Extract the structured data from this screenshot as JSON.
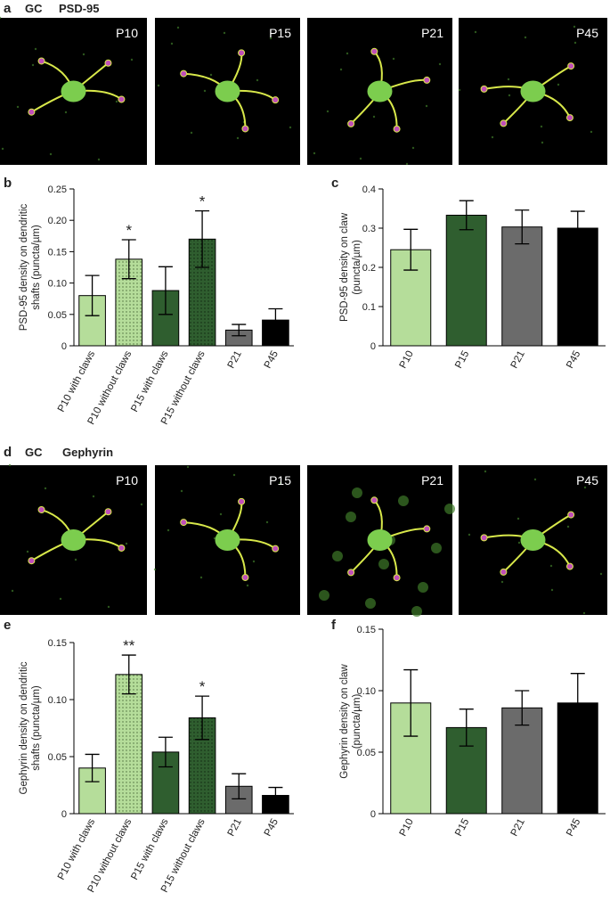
{
  "panel_labels": [
    "a",
    "b",
    "c",
    "d",
    "e",
    "f"
  ],
  "image_rows": [
    {
      "legend": [
        "GC",
        "PSD-95"
      ],
      "legend_colors": [
        "#7ccd4e",
        "#c04fb8"
      ],
      "labels": [
        "P10",
        "P15",
        "P21",
        "P45"
      ]
    },
    {
      "legend": [
        "GC",
        "Gephyrin"
      ],
      "legend_colors": [
        "#7ccd4e",
        "#c04fb8"
      ],
      "labels": [
        "P10",
        "P15",
        "P21",
        "P45"
      ]
    }
  ],
  "chart_data": [
    {
      "type": "bar",
      "ylabel": [
        "PSD-95 density on dendritic",
        "shafts (puncta/µm)"
      ],
      "categories": [
        "P10 with claws",
        "P10 without claws",
        "P15 with claws",
        "P15 without claws",
        "P21",
        "P45"
      ],
      "values": [
        0.08,
        0.138,
        0.088,
        0.17,
        0.025,
        0.041
      ],
      "errors": [
        0.032,
        0.031,
        0.038,
        0.045,
        0.009,
        0.018
      ],
      "annotations": [
        null,
        "*",
        null,
        "*",
        null,
        null
      ],
      "colors": [
        "#b5dd9a",
        "#b5dd9a",
        "#2f5e2f",
        "#2f5e2f",
        "#6b6b6b",
        "#000000"
      ],
      "dotted": [
        false,
        true,
        false,
        true,
        false,
        false
      ],
      "ylim": [
        0,
        0.25
      ],
      "yticks": [
        0,
        0.05,
        {
          "value": 0.1,
          "label": "0.10"
        },
        0.15,
        {
          "value": 0.2,
          "label": "0.20"
        },
        0.25
      ]
    },
    {
      "type": "bar",
      "ylabel": [
        "PSD-95 density on claw",
        "(puncta/µm)"
      ],
      "categories": [
        "P10",
        "P15",
        "P21",
        "P45"
      ],
      "values": [
        0.245,
        0.333,
        0.303,
        0.3
      ],
      "errors": [
        0.052,
        0.037,
        0.043,
        0.043
      ],
      "colors": [
        "#b5dd9a",
        "#2f5e2f",
        "#6b6b6b",
        "#000000"
      ],
      "ylim": [
        0,
        0.4
      ],
      "yticks": [
        0,
        0.1,
        0.2,
        0.3,
        0.4
      ]
    },
    {
      "type": "bar",
      "ylabel": [
        "Gephyrin density on dendritic",
        "shafts (puncta/µm)"
      ],
      "categories": [
        "P10 with claws",
        "P10 without claws",
        "P15 with claws",
        "P15 without claws",
        "P21",
        "P45"
      ],
      "values": [
        0.04,
        0.122,
        0.054,
        0.084,
        0.024,
        0.016
      ],
      "errors": [
        0.012,
        0.017,
        0.013,
        0.019,
        0.011,
        0.007
      ],
      "annotations": [
        null,
        "**",
        null,
        "*",
        null,
        null
      ],
      "colors": [
        "#b5dd9a",
        "#b5dd9a",
        "#2f5e2f",
        "#2f5e2f",
        "#6b6b6b",
        "#000000"
      ],
      "dotted": [
        false,
        true,
        false,
        true,
        false,
        false
      ],
      "ylim": [
        0,
        0.15
      ],
      "yticks": [
        0,
        0.05,
        {
          "value": 0.1,
          "label": "0.10"
        },
        0.15
      ]
    },
    {
      "type": "bar",
      "ylabel": [
        "Gephyrin density on claw",
        "(puncta/µm)"
      ],
      "categories": [
        "P10",
        "P15",
        "P21",
        "P45"
      ],
      "values": [
        0.09,
        0.07,
        0.086,
        0.09
      ],
      "errors": [
        0.027,
        0.015,
        0.014,
        0.024
      ],
      "colors": [
        "#b5dd9a",
        "#2f5e2f",
        "#6b6b6b",
        "#000000"
      ],
      "ylim": [
        0,
        0.15
      ],
      "yticks": [
        0,
        0.05,
        {
          "value": 0.1,
          "label": "0.10"
        },
        0.15
      ]
    }
  ]
}
